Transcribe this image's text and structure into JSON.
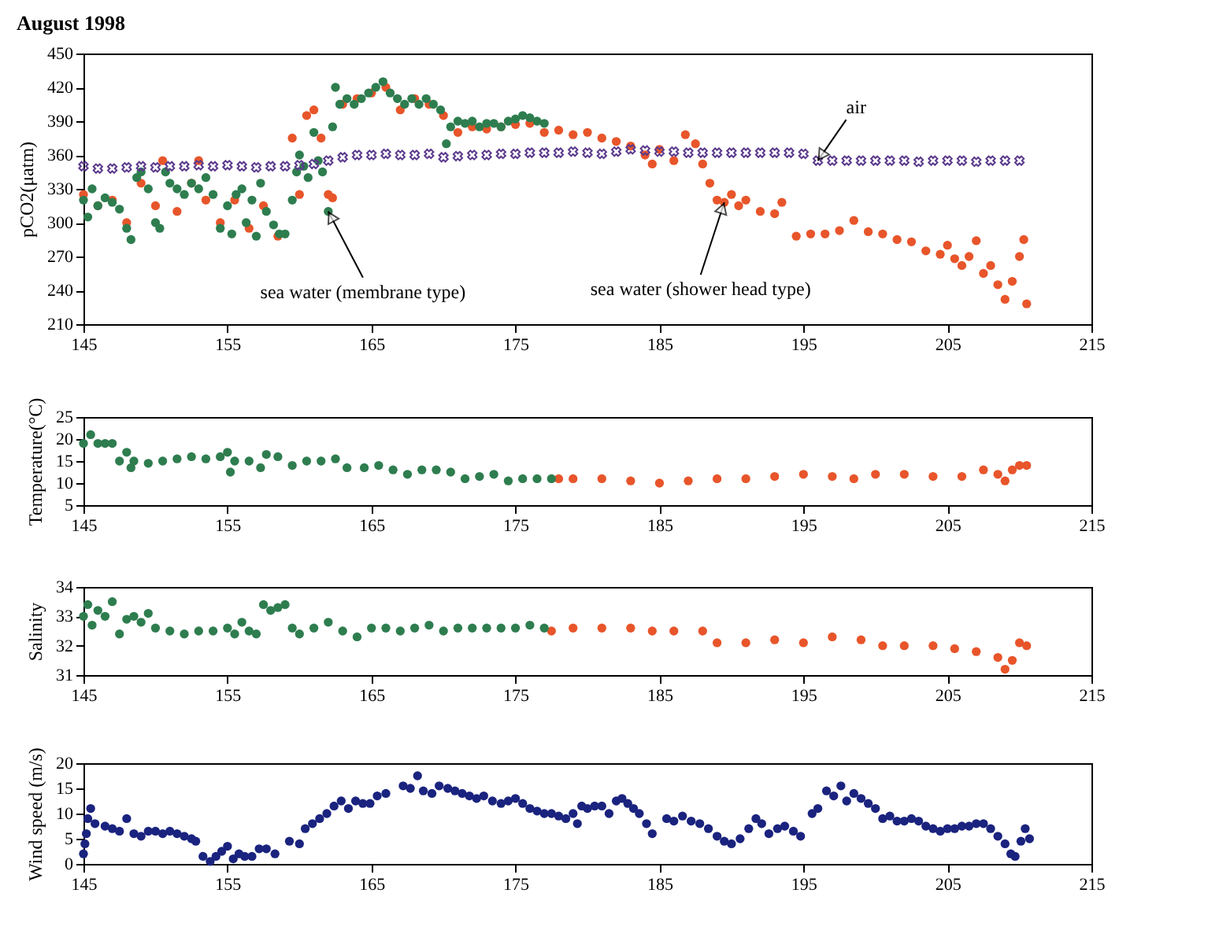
{
  "chart_data": [
    {
      "type": "scatter",
      "title": "August 1998",
      "ylabel": "pCO2(μatm)",
      "xlim": [
        145,
        215
      ],
      "xticks": [
        145,
        155,
        165,
        175,
        185,
        195,
        205,
        215
      ],
      "ylim": [
        210,
        450
      ],
      "yticks": [
        210,
        240,
        270,
        300,
        330,
        360,
        390,
        420,
        450
      ],
      "series": [
        {
          "color": "#e8552a",
          "marker": "circle",
          "x": [
            145,
            146,
            147,
            148,
            149,
            150,
            150.5,
            151.5,
            152.5,
            153,
            153.5,
            154.5,
            155.5,
            156.5,
            157.5,
            158.5,
            159.5,
            160,
            160.5,
            161,
            161.5,
            162,
            162.3,
            163,
            164,
            165,
            166,
            167,
            168,
            169,
            170,
            171,
            172,
            173,
            174,
            175,
            176,
            177,
            178,
            179,
            180,
            181,
            182,
            183,
            184,
            184.5,
            185,
            186,
            186.8,
            187.5,
            188,
            188.5,
            189,
            189.5,
            190,
            190.5,
            191,
            192,
            193,
            193.5,
            194.5,
            195.5,
            196.5,
            197.5,
            198.5,
            199.5,
            200.5,
            201.5,
            202.5,
            203.5,
            204.5,
            205,
            205.5,
            206,
            206.5,
            207,
            207.5,
            208,
            208.5,
            209,
            209.5,
            210,
            210.3,
            210.5
          ],
          "values": [
            325,
            315,
            320,
            300,
            335,
            315,
            355,
            310,
            335,
            355,
            320,
            300,
            320,
            295,
            315,
            288,
            375,
            325,
            395,
            400,
            375,
            325,
            322,
            405,
            410,
            415,
            420,
            400,
            410,
            405,
            395,
            380,
            385,
            383,
            385,
            387,
            388,
            380,
            382,
            378,
            380,
            375,
            372,
            368,
            360,
            352,
            365,
            355,
            378,
            370,
            352,
            335,
            320,
            318,
            325,
            315,
            320,
            310,
            308,
            318,
            288,
            290,
            290,
            293,
            302,
            292,
            290,
            285,
            283,
            275,
            272,
            280,
            268,
            262,
            270,
            284,
            255,
            262,
            245,
            232,
            248,
            270,
            285,
            228
          ]
        },
        {
          "color": "#2e7d4f",
          "marker": "circle",
          "x": [
            145,
            145.3,
            145.6,
            146,
            146.5,
            147,
            147.5,
            148,
            148.3,
            148.7,
            149,
            149.5,
            150,
            150.3,
            150.7,
            151,
            151.5,
            152,
            152.5,
            153,
            153.5,
            154,
            154.5,
            155,
            155.3,
            155.6,
            156,
            156.3,
            156.7,
            157,
            157.3,
            157.7,
            158.2,
            158.6,
            159,
            159.5,
            159.8,
            160,
            160.3,
            160.6,
            161,
            161.3,
            161.6,
            162,
            162.3,
            162.5,
            162.8,
            163.3,
            163.8,
            164.3,
            164.8,
            165.3,
            165.8,
            166.3,
            166.8,
            167.3,
            167.8,
            168.3,
            168.8,
            169.3,
            169.8,
            170.2,
            170.5,
            171,
            171.5,
            172,
            172.5,
            173,
            173.5,
            174,
            174.5,
            175,
            175.5,
            176,
            176.5,
            177
          ],
          "values": [
            320,
            305,
            330,
            315,
            322,
            318,
            312,
            295,
            285,
            340,
            345,
            330,
            300,
            295,
            345,
            335,
            330,
            325,
            335,
            330,
            340,
            325,
            295,
            315,
            290,
            325,
            330,
            300,
            320,
            288,
            335,
            310,
            298,
            290,
            290,
            320,
            345,
            360,
            350,
            340,
            380,
            355,
            345,
            310,
            385,
            420,
            405,
            410,
            405,
            410,
            415,
            420,
            425,
            415,
            410,
            405,
            410,
            405,
            410,
            405,
            400,
            370,
            385,
            390,
            388,
            390,
            385,
            388,
            388,
            385,
            390,
            392,
            395,
            393,
            390,
            388
          ]
        },
        {
          "color": "#5b3a8c",
          "marker": "cross",
          "x": [
            145,
            146,
            147,
            148,
            149,
            150,
            151,
            152,
            153,
            154,
            155,
            156,
            157,
            158,
            159,
            160,
            161,
            162,
            163,
            164,
            165,
            166,
            167,
            168,
            169,
            170,
            171,
            172,
            173,
            174,
            175,
            176,
            177,
            178,
            179,
            180,
            181,
            182,
            183,
            184,
            185,
            186,
            187,
            188,
            189,
            190,
            191,
            192,
            193,
            194,
            195,
            196,
            197,
            198,
            199,
            200,
            201,
            202,
            203,
            204,
            205,
            206,
            207,
            208,
            209,
            210
          ],
          "values": [
            350,
            348,
            348,
            349,
            350,
            349,
            350,
            350,
            351,
            350,
            351,
            350,
            349,
            350,
            350,
            351,
            352,
            355,
            358,
            360,
            360,
            361,
            360,
            360,
            361,
            358,
            359,
            360,
            360,
            361,
            361,
            362,
            362,
            362,
            363,
            362,
            361,
            363,
            365,
            364,
            363,
            363,
            362,
            362,
            362,
            362,
            362,
            362,
            362,
            362,
            361,
            355,
            355,
            355,
            355,
            355,
            355,
            355,
            354,
            355,
            355,
            355,
            354,
            355,
            355,
            355
          ]
        }
      ],
      "annotations": [
        {
          "text": "air",
          "x": 196,
          "y": 355
        },
        {
          "text": "sea water (membrane type)",
          "x": 162,
          "y": 310
        },
        {
          "text": "sea water (shower head type)",
          "x": 189.5,
          "y": 318
        }
      ]
    },
    {
      "type": "scatter",
      "ylabel": "Temperature(°C)",
      "xlim": [
        145,
        215
      ],
      "xticks": [
        145,
        155,
        165,
        175,
        185,
        195,
        205,
        215
      ],
      "ylim": [
        5,
        25
      ],
      "yticks": [
        5,
        10,
        15,
        20,
        25
      ],
      "series": [
        {
          "color": "#e8552a",
          "marker": "circle",
          "x": [
            178,
            179,
            181,
            183,
            185,
            187,
            189,
            191,
            193,
            195,
            197,
            198.5,
            200,
            202,
            204,
            206,
            207.5,
            208.5,
            209,
            209.5,
            210,
            210.5
          ],
          "values": [
            11,
            11,
            11,
            10.5,
            10,
            10.5,
            11,
            11,
            11.5,
            12,
            11.5,
            11,
            12,
            12,
            11.5,
            11.5,
            13,
            12,
            10.5,
            13,
            14,
            14
          ]
        },
        {
          "color": "#2e7d4f",
          "marker": "circle",
          "x": [
            145,
            145.5,
            146,
            146.5,
            147,
            147.5,
            148,
            148.3,
            148.5,
            149.5,
            150.5,
            151.5,
            152.5,
            153.5,
            154.5,
            155,
            155.2,
            155.5,
            156.5,
            157.3,
            157.7,
            158.5,
            159.5,
            160.5,
            161.5,
            162.5,
            163.3,
            164.5,
            165.5,
            166.5,
            167.5,
            168.5,
            169.5,
            170.5,
            171.5,
            172.5,
            173.5,
            174.5,
            175.5,
            176.5,
            177.5
          ],
          "values": [
            19,
            21,
            19,
            19,
            19,
            15,
            17,
            13.5,
            15,
            14.5,
            15,
            15.5,
            16,
            15.5,
            16,
            17,
            12.5,
            15,
            15,
            13.5,
            16.5,
            16,
            14,
            15,
            15,
            15.5,
            13.5,
            13.5,
            14,
            13,
            12,
            13,
            13,
            12.5,
            11,
            11.5,
            12,
            10.5,
            11,
            11,
            11
          ]
        }
      ]
    },
    {
      "type": "scatter",
      "ylabel": "Salinity",
      "xlim": [
        145,
        215
      ],
      "xticks": [
        145,
        155,
        165,
        175,
        185,
        195,
        205,
        215
      ],
      "ylim": [
        31,
        34
      ],
      "yticks": [
        31,
        32,
        33,
        34
      ],
      "series": [
        {
          "color": "#e8552a",
          "marker": "circle",
          "x": [
            177.5,
            179,
            181,
            183,
            184.5,
            186,
            188,
            189,
            191,
            193,
            195,
            197,
            199,
            200.5,
            202,
            204,
            205.5,
            207,
            208.5,
            209,
            209.5,
            210,
            210.5
          ],
          "values": [
            32.5,
            32.6,
            32.6,
            32.6,
            32.5,
            32.5,
            32.5,
            32.1,
            32.1,
            32.2,
            32.1,
            32.3,
            32.2,
            32,
            32,
            32,
            31.9,
            31.8,
            31.6,
            31.2,
            31.5,
            32.1,
            32
          ]
        },
        {
          "color": "#2e7d4f",
          "marker": "circle",
          "x": [
            145,
            145.3,
            145.6,
            146,
            146.5,
            147,
            147.5,
            148,
            148.5,
            149,
            149.5,
            150,
            151,
            152,
            153,
            154,
            155,
            155.5,
            156,
            156.5,
            157,
            157.5,
            158,
            158.5,
            159,
            159.5,
            160,
            161,
            162,
            163,
            164,
            165,
            166,
            167,
            168,
            169,
            170,
            171,
            172,
            173,
            174,
            175,
            176,
            177
          ],
          "values": [
            33,
            33.4,
            32.7,
            33.2,
            33,
            33.5,
            32.4,
            32.9,
            33,
            32.8,
            33.1,
            32.6,
            32.5,
            32.4,
            32.5,
            32.5,
            32.6,
            32.4,
            32.8,
            32.5,
            32.4,
            33.4,
            33.2,
            33.3,
            33.4,
            32.6,
            32.4,
            32.6,
            32.8,
            32.5,
            32.3,
            32.6,
            32.6,
            32.5,
            32.6,
            32.7,
            32.5,
            32.6,
            32.6,
            32.6,
            32.6,
            32.6,
            32.7,
            32.6
          ]
        }
      ]
    },
    {
      "type": "scatter",
      "ylabel": "Wind speed (m/s)",
      "xlim": [
        145,
        215
      ],
      "xticks": [
        145,
        155,
        165,
        175,
        185,
        195,
        205,
        215
      ],
      "ylim": [
        0,
        20
      ],
      "yticks": [
        0,
        5,
        10,
        15,
        20
      ],
      "series": [
        {
          "color": "#1a237e",
          "marker": "circle",
          "x": [
            145,
            145.1,
            145.2,
            145.3,
            145.5,
            145.8,
            146.5,
            147,
            147.5,
            148,
            148.5,
            149,
            149.5,
            150,
            150.5,
            151,
            151.5,
            152,
            152.5,
            152.8,
            153.3,
            153.8,
            154.2,
            154.6,
            155,
            155.4,
            155.8,
            156.2,
            156.7,
            157.2,
            157.7,
            158.3,
            159.3,
            160,
            160.4,
            160.9,
            161.4,
            161.9,
            162.4,
            162.9,
            163.4,
            163.9,
            164.4,
            164.9,
            165.4,
            166,
            167.2,
            167.7,
            168.2,
            168.6,
            169.2,
            169.7,
            170.3,
            170.8,
            171.3,
            171.8,
            172.3,
            172.8,
            173.4,
            174,
            174.5,
            175,
            175.5,
            176,
            176.5,
            177,
            177.5,
            178,
            178.5,
            179,
            179.3,
            179.6,
            180,
            180.5,
            181,
            181.5,
            182,
            182.4,
            182.8,
            183.2,
            183.6,
            184.1,
            184.5,
            185.5,
            186,
            186.6,
            187.2,
            187.8,
            188.4,
            189,
            189.5,
            190,
            190.6,
            191.2,
            191.7,
            192.1,
            192.6,
            193.2,
            193.7,
            194.3,
            194.8,
            195.6,
            196,
            196.6,
            197.1,
            197.6,
            198,
            198.5,
            199,
            199.5,
            200,
            200.5,
            201,
            201.5,
            202,
            202.5,
            203,
            203.5,
            204,
            204.5,
            205,
            205.5,
            206,
            206.5,
            207,
            207.5,
            208,
            208.5,
            209,
            209.4,
            209.7,
            210.1,
            210.4,
            210.7
          ],
          "values": [
            2,
            4,
            6,
            9,
            11,
            8,
            7.5,
            7,
            6.5,
            9,
            6,
            5.5,
            6.5,
            6.5,
            6,
            6.5,
            6,
            5.5,
            5,
            4.5,
            1.5,
            0.5,
            1.5,
            2.5,
            3.5,
            1,
            2,
            1.5,
            1.5,
            3,
            3,
            2,
            4.5,
            4,
            7,
            8,
            9,
            10,
            11.5,
            12.5,
            11,
            12.5,
            12,
            12,
            13.5,
            14,
            15.5,
            15,
            17.5,
            14.5,
            14,
            15.5,
            15,
            14.5,
            14,
            13.5,
            13,
            13.5,
            12.5,
            12,
            12.5,
            13,
            12,
            11,
            10.5,
            10,
            10,
            9.5,
            9,
            10,
            8,
            11.5,
            11,
            11.5,
            11.5,
            10,
            12.5,
            13,
            12,
            11,
            10,
            8,
            6,
            9,
            8.5,
            9.5,
            8.5,
            8,
            7,
            5.5,
            4.5,
            4,
            5,
            7,
            9,
            8,
            6,
            7,
            7.5,
            6.5,
            5.5,
            10,
            11,
            14.5,
            13.5,
            15.5,
            12.5,
            14,
            13,
            12,
            11,
            9,
            9.5,
            8.5,
            8.5,
            9,
            8.5,
            7.5,
            7,
            6.5,
            7,
            7,
            7.5,
            7.5,
            8,
            8,
            7,
            5.5,
            4,
            2,
            1.5,
            4.5,
            7,
            5
          ]
        }
      ]
    }
  ]
}
